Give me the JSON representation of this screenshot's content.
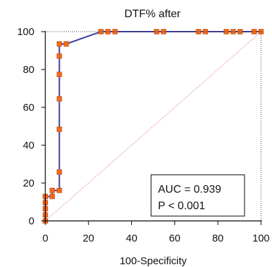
{
  "chart_data": {
    "type": "line",
    "title": "DTF% after",
    "xlabel": "100-Specificity",
    "ylabel": "",
    "xlim": [
      0,
      100
    ],
    "ylim": [
      0,
      100
    ],
    "xticks": [
      0,
      20,
      40,
      60,
      80,
      100
    ],
    "yticks": [
      0,
      20,
      40,
      60,
      80,
      100
    ],
    "grid": false,
    "series": [
      {
        "values": [
          {
            "x": 0,
            "y": 0
          },
          {
            "x": 0,
            "y": 3.2
          },
          {
            "x": 0,
            "y": 6.5
          },
          {
            "x": 0,
            "y": 9.7
          },
          {
            "x": 0,
            "y": 12.9
          },
          {
            "x": 3.2,
            "y": 12.9
          },
          {
            "x": 3.2,
            "y": 16.1
          },
          {
            "x": 6.5,
            "y": 16.1
          },
          {
            "x": 6.5,
            "y": 25.8
          },
          {
            "x": 6.5,
            "y": 48.4
          },
          {
            "x": 6.5,
            "y": 64.5
          },
          {
            "x": 6.5,
            "y": 77.4
          },
          {
            "x": 6.5,
            "y": 87.1
          },
          {
            "x": 6.5,
            "y": 93.5
          },
          {
            "x": 9.7,
            "y": 93.5
          },
          {
            "x": 25.8,
            "y": 100
          },
          {
            "x": 29.0,
            "y": 100
          },
          {
            "x": 32.3,
            "y": 100
          },
          {
            "x": 51.6,
            "y": 100
          },
          {
            "x": 54.8,
            "y": 100
          },
          {
            "x": 71.0,
            "y": 100
          },
          {
            "x": 74.2,
            "y": 100
          },
          {
            "x": 83.9,
            "y": 100
          },
          {
            "x": 87.1,
            "y": 100
          },
          {
            "x": 90.3,
            "y": 100
          },
          {
            "x": 96.8,
            "y": 100
          },
          {
            "x": 100,
            "y": 100
          }
        ]
      }
    ],
    "reference_line": [
      {
        "x": 0,
        "y": 0
      },
      {
        "x": 100,
        "y": 100
      }
    ],
    "annotation": {
      "auc_text": "AUC = 0.939",
      "p_text": "P < 0.001"
    },
    "colors": {
      "curve": "#3a3aa3",
      "marker_fill": "#f26a1b",
      "marker_stroke": "#b84a10",
      "reference": "#d9534f",
      "axis": "#000000",
      "text": "#111111"
    }
  }
}
